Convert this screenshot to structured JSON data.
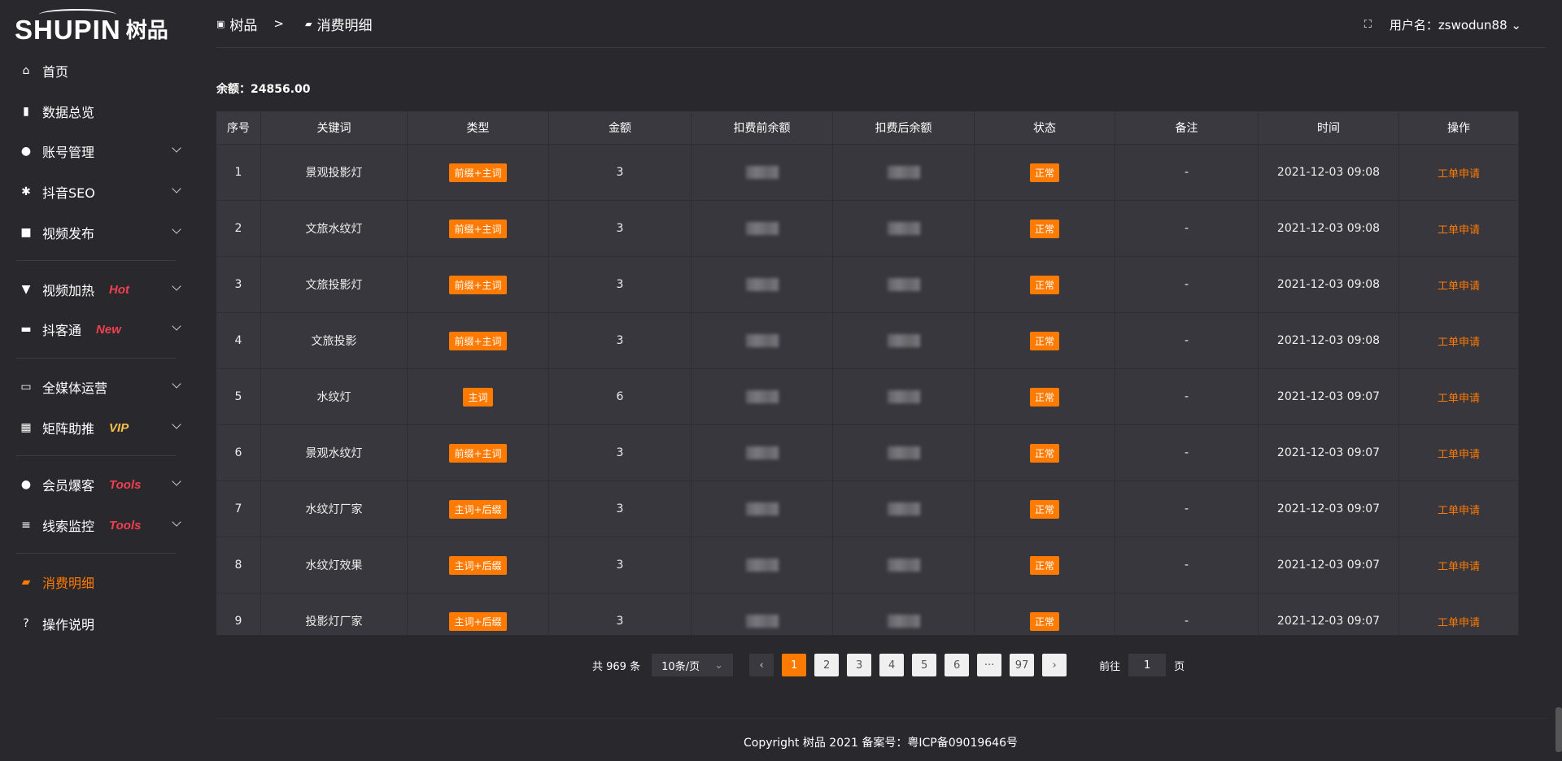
{
  "logo": {
    "en": "SHUPIN",
    "cn": "树品"
  },
  "sidebar": {
    "items": [
      {
        "label": "首页",
        "icon": "home-icon",
        "glyph": "⌂"
      },
      {
        "label": "数据总览",
        "icon": "bar-chart-icon",
        "glyph": "▮"
      },
      {
        "label": "账号管理",
        "icon": "user-icon",
        "glyph": "●",
        "chevron": true
      },
      {
        "label": "抖音SEO",
        "icon": "gear-icon",
        "glyph": "✱",
        "chevron": true
      },
      {
        "label": "视频发布",
        "icon": "video-icon",
        "glyph": "■",
        "chevron": true
      },
      {
        "label": "视频加热",
        "icon": "heat-icon",
        "glyph": "▼",
        "tag": "Hot",
        "tag_color": "#f0404f",
        "chevron": true
      },
      {
        "label": "抖客通",
        "icon": "chat-icon",
        "glyph": "▬",
        "tag": "New",
        "tag_color": "#f0404f",
        "chevron": true
      },
      {
        "label": "全媒体运营",
        "icon": "monitor-icon",
        "glyph": "▭",
        "chevron": true
      },
      {
        "label": "矩阵助推",
        "icon": "grid-icon",
        "glyph": "▦",
        "tag": "VIP",
        "tag_color": "#f5c04a",
        "chevron": true
      },
      {
        "label": "会员爆客",
        "icon": "member-icon",
        "glyph": "●",
        "tag": "Tools",
        "tag_color": "#f0404f",
        "chevron": true
      },
      {
        "label": "线索监控",
        "icon": "sliders-icon",
        "glyph": "≡",
        "tag": "Tools",
        "tag_color": "#f0404f",
        "chevron": true
      },
      {
        "label": "消费明细",
        "icon": "wallet-icon",
        "glyph": "▰",
        "active": true
      },
      {
        "label": "操作说明",
        "icon": "help-icon",
        "glyph": "?"
      }
    ]
  },
  "header": {
    "breadcrumb": [
      "树品",
      "消费明细"
    ],
    "separator": ">",
    "username_label": "用户名：zswodun88"
  },
  "balance": "余额：24856.00",
  "table": {
    "columns": [
      "序号",
      "关键词",
      "类型",
      "金额",
      "扣费前余额",
      "扣费后余额",
      "状态",
      "备注",
      "时间",
      "操作"
    ],
    "rows": [
      {
        "no": "1",
        "keyword": "景观投影灯",
        "type": "前缀+主词",
        "amount": "3",
        "status": "正常",
        "note": "-",
        "time": "2021-12-03 09:08",
        "action": "工单申请"
      },
      {
        "no": "2",
        "keyword": "文旅水纹灯",
        "type": "前缀+主词",
        "amount": "3",
        "status": "正常",
        "note": "-",
        "time": "2021-12-03 09:08",
        "action": "工单申请"
      },
      {
        "no": "3",
        "keyword": "文旅投影灯",
        "type": "前缀+主词",
        "amount": "3",
        "status": "正常",
        "note": "-",
        "time": "2021-12-03 09:08",
        "action": "工单申请"
      },
      {
        "no": "4",
        "keyword": "文旅投影",
        "type": "前缀+主词",
        "amount": "3",
        "status": "正常",
        "note": "-",
        "time": "2021-12-03 09:08",
        "action": "工单申请"
      },
      {
        "no": "5",
        "keyword": "水纹灯",
        "type": "主词",
        "amount": "6",
        "status": "正常",
        "note": "-",
        "time": "2021-12-03 09:07",
        "action": "工单申请"
      },
      {
        "no": "6",
        "keyword": "景观水纹灯",
        "type": "前缀+主词",
        "amount": "3",
        "status": "正常",
        "note": "-",
        "time": "2021-12-03 09:07",
        "action": "工单申请"
      },
      {
        "no": "7",
        "keyword": "水纹灯厂家",
        "type": "主词+后缀",
        "amount": "3",
        "status": "正常",
        "note": "-",
        "time": "2021-12-03 09:07",
        "action": "工单申请"
      },
      {
        "no": "8",
        "keyword": "水纹灯效果",
        "type": "主词+后缀",
        "amount": "3",
        "status": "正常",
        "note": "-",
        "time": "2021-12-03 09:07",
        "action": "工单申请"
      },
      {
        "no": "9",
        "keyword": "投影灯厂家",
        "type": "主词+后缀",
        "amount": "3",
        "status": "正常",
        "note": "-",
        "time": "2021-12-03 09:07",
        "action": "工单申请"
      }
    ]
  },
  "pagination": {
    "total": "共 969 条",
    "page_size": "10条/页",
    "pages": [
      "1",
      "2",
      "3",
      "4",
      "5",
      "6",
      "···",
      "97"
    ],
    "current": "1",
    "goto_label": "前往",
    "goto_value": "1",
    "page_suffix": "页"
  },
  "footer": "Copyright 树品 2021 备案号：粤ICP备09019646号",
  "colors": {
    "accent": "#ff7a00",
    "background": "#29282c",
    "table": "#38373d"
  }
}
